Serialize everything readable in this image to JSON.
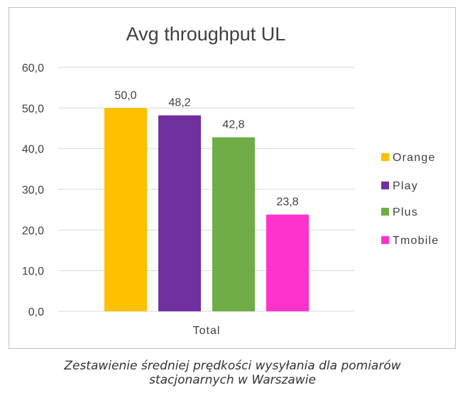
{
  "chart_data": {
    "type": "bar",
    "title": "Avg throughput UL",
    "categories": [
      "Total"
    ],
    "series": [
      {
        "name": "Orange",
        "values": [
          50.0
        ],
        "label": "50,0",
        "color": "#FFC000"
      },
      {
        "name": "Play",
        "values": [
          48.2
        ],
        "label": "48,2",
        "color": "#7030A0"
      },
      {
        "name": "Plus",
        "values": [
          42.8
        ],
        "label": "42,8",
        "color": "#70AD47"
      },
      {
        "name": "Tmobile",
        "values": [
          23.8
        ],
        "label": "23,8",
        "color": "#FF33CC"
      }
    ],
    "xlabel": "",
    "ylabel": "",
    "ylim": [
      0,
      60
    ],
    "yticks": [
      0,
      10,
      20,
      30,
      40,
      50,
      60
    ],
    "ytick_labels": [
      "0,0",
      "10,0",
      "20,0",
      "30,0",
      "40,0",
      "50,0",
      "60,0"
    ],
    "grid": true,
    "legend_position": "right"
  },
  "caption": {
    "line1": "Zestawienie średniej prędkości wysyłania dla pomiarów",
    "line2": "stacjonarnych w Warszawie"
  }
}
